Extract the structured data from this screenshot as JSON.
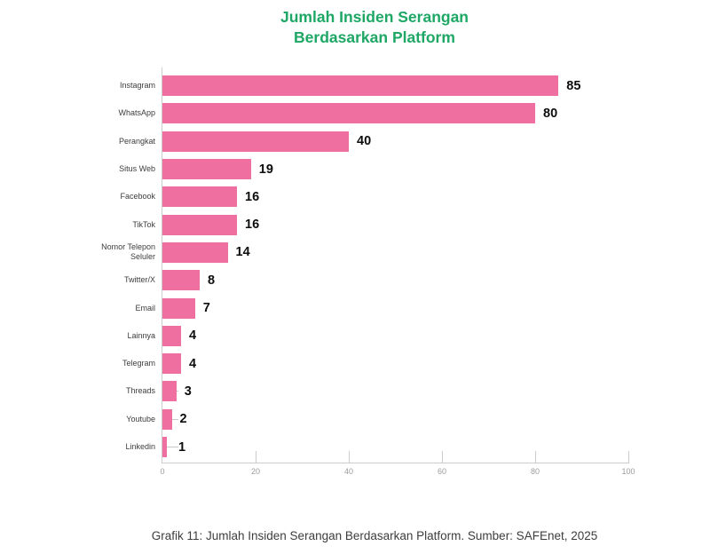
{
  "title": "Jumlah Insiden Serangan\nBerdasarkan Platform",
  "caption": "Grafik 11: Jumlah Insiden Serangan Berdasarkan Platform. Sumber: SAFEnet, 2025",
  "colors": {
    "title": "#1ea765",
    "bar": "#ee6fa0",
    "axis": "#cccccc",
    "tick_label": "#9b9b9b",
    "category_label": "#3d3d3d",
    "value_label": "#0d0d0d"
  },
  "chart_data": {
    "type": "bar",
    "orientation": "horizontal",
    "title": "Jumlah Insiden Serangan Berdasarkan Platform",
    "categories": [
      "Instagram",
      "WhatsApp",
      "Perangkat",
      "Situs Web",
      "Facebook",
      "TikTok",
      "Nomor Telepon Seluler",
      "Twitter/X",
      "Email",
      "Lainnya",
      "Telegram",
      "Threads",
      "Youtube",
      "Linkedin"
    ],
    "values": [
      85,
      80,
      40,
      19,
      16,
      16,
      14,
      8,
      7,
      4,
      4,
      3,
      2,
      1
    ],
    "xlabel": "",
    "ylabel": "",
    "xlim": [
      0,
      100
    ],
    "xticks": [
      0,
      20,
      40,
      60,
      80,
      100
    ],
    "grid": false,
    "legend": false
  }
}
